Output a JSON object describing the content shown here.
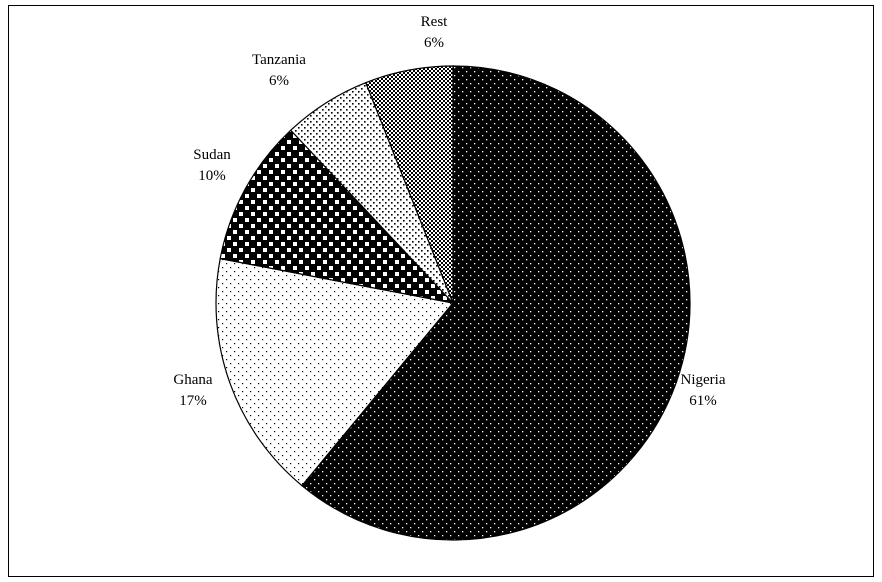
{
  "chart_data": {
    "type": "pie",
    "title": "",
    "slices": [
      {
        "name": "Nigeria",
        "value": 61,
        "label": "61%"
      },
      {
        "name": "Ghana",
        "value": 17,
        "label": "17%"
      },
      {
        "name": "Sudan",
        "value": 10,
        "label": "10%"
      },
      {
        "name": "Tanzania",
        "value": 6,
        "label": "6%"
      },
      {
        "name": "Rest",
        "value": 6,
        "label": "6%"
      }
    ],
    "legend": "none",
    "colors": {
      "fill": "#000000",
      "background": "#ffffff",
      "stroke": "#000000"
    }
  }
}
